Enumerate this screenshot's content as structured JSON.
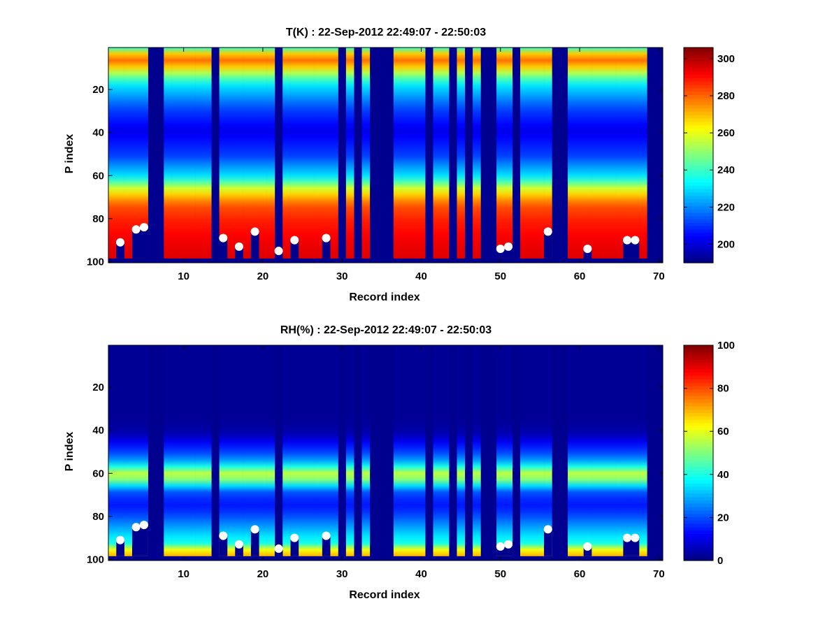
{
  "chart_data": [
    {
      "type": "heatmap",
      "title": "T(K) : 22-Sep-2012 22:49:07 - 22:50:03",
      "xlabel": "Record index",
      "ylabel": "P index",
      "xlim": [
        0.5,
        70.5
      ],
      "ylim": [
        0.5,
        100.5
      ],
      "y_reversed": true,
      "x_ticks": [
        10,
        20,
        30,
        40,
        50,
        60,
        70
      ],
      "y_ticks": [
        20,
        40,
        60,
        80,
        100
      ],
      "colormap": "jet",
      "clim": [
        190,
        306
      ],
      "colorbar_ticks": [
        200,
        220,
        240,
        260,
        280,
        300
      ],
      "profile_nodes": [
        [
          1,
          240
        ],
        [
          3,
          265
        ],
        [
          8,
          282
        ],
        [
          11,
          262
        ],
        [
          18,
          232
        ],
        [
          30,
          212
        ],
        [
          40,
          202
        ],
        [
          52,
          212
        ],
        [
          62,
          232
        ],
        [
          68,
          262
        ],
        [
          75,
          282
        ],
        [
          82,
          288
        ],
        [
          90,
          292
        ],
        [
          98,
          295
        ]
      ],
      "missing_records": [
        6,
        7,
        14,
        22,
        30,
        32,
        34,
        35,
        36,
        41,
        44,
        46,
        48,
        49,
        52,
        57,
        58,
        69,
        70
      ],
      "surface_markers": [
        {
          "record": 2,
          "p": 91
        },
        {
          "record": 4,
          "p": 85
        },
        {
          "record": 5,
          "p": 84
        },
        {
          "record": 15,
          "p": 89
        },
        {
          "record": 17,
          "p": 93
        },
        {
          "record": 19,
          "p": 86
        },
        {
          "record": 22,
          "p": 95
        },
        {
          "record": 24,
          "p": 90
        },
        {
          "record": 28,
          "p": 89
        },
        {
          "record": 50,
          "p": 94
        },
        {
          "record": 51,
          "p": 93
        },
        {
          "record": 56,
          "p": 86
        },
        {
          "record": 61,
          "p": 94
        },
        {
          "record": 66,
          "p": 90
        },
        {
          "record": 67,
          "p": 90
        }
      ]
    },
    {
      "type": "heatmap",
      "title": "RH(%) : 22-Sep-2012 22:49:07 - 22:50:03",
      "xlabel": "Record index",
      "ylabel": "P index",
      "xlim": [
        0.5,
        70.5
      ],
      "ylim": [
        0.5,
        100.5
      ],
      "y_reversed": true,
      "x_ticks": [
        10,
        20,
        30,
        40,
        50,
        60,
        70
      ],
      "y_ticks": [
        20,
        40,
        60,
        80,
        100
      ],
      "colormap": "jet",
      "clim": [
        0,
        100
      ],
      "colorbar_ticks": [
        0,
        20,
        40,
        60,
        80,
        100
      ],
      "profile_nodes": [
        [
          1,
          2
        ],
        [
          35,
          2
        ],
        [
          42,
          4
        ],
        [
          48,
          14
        ],
        [
          54,
          24
        ],
        [
          58,
          40
        ],
        [
          61,
          56
        ],
        [
          63,
          56
        ],
        [
          66,
          40
        ],
        [
          69,
          22
        ],
        [
          75,
          14
        ],
        [
          80,
          18
        ],
        [
          85,
          26
        ],
        [
          90,
          34
        ],
        [
          94,
          40
        ],
        [
          96,
          55
        ],
        [
          98,
          68
        ],
        [
          100,
          70
        ]
      ],
      "missing_records": [
        6,
        7,
        14,
        22,
        30,
        32,
        34,
        35,
        36,
        41,
        44,
        46,
        48,
        49,
        52,
        57,
        58,
        69,
        70
      ],
      "surface_markers": [
        {
          "record": 2,
          "p": 91
        },
        {
          "record": 4,
          "p": 85
        },
        {
          "record": 5,
          "p": 84
        },
        {
          "record": 15,
          "p": 89
        },
        {
          "record": 17,
          "p": 93
        },
        {
          "record": 19,
          "p": 86
        },
        {
          "record": 22,
          "p": 95
        },
        {
          "record": 24,
          "p": 90
        },
        {
          "record": 28,
          "p": 89
        },
        {
          "record": 50,
          "p": 94
        },
        {
          "record": 51,
          "p": 93
        },
        {
          "record": 56,
          "p": 86
        },
        {
          "record": 61,
          "p": 94
        },
        {
          "record": 66,
          "p": 90
        },
        {
          "record": 67,
          "p": 90
        }
      ]
    }
  ]
}
